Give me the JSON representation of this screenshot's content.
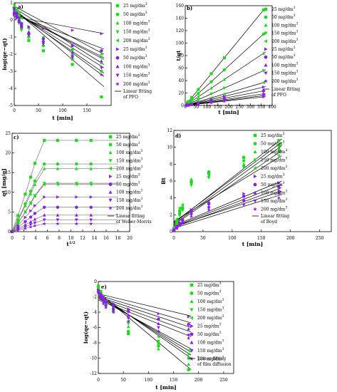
{
  "legend_entries": [
    "25 mg/dm",
    "50 mg/dm",
    "100 mg/dm",
    "150 mg/dm",
    "200 mg/dm",
    "25 mg/dm",
    "50 mg/dm",
    "100 mg/dm",
    "150 mg/dm",
    "200 mg/dm"
  ],
  "legend_superscript": "3",
  "colors": {
    "green": "#22d622",
    "purple": "#8a20e8",
    "line": "#000000"
  },
  "chart_data": [
    {
      "panel_label": "a)",
      "type": "scatter",
      "xlabel": "t [min]",
      "ylabel": "log(qe−qt)",
      "xlim": [
        0,
        200
      ],
      "ylim": [
        -5,
        1
      ],
      "xticks": [
        0,
        50,
        100,
        150
      ],
      "yticks": [
        1,
        0,
        -1,
        -2,
        -3,
        -4,
        -5
      ],
      "fit_label": [
        "Linear fitting",
        "of PFO"
      ],
      "x": [
        0,
        5,
        10,
        15,
        30,
        60,
        120,
        180
      ],
      "series": [
        {
          "values": [
            0.7,
            0.5,
            0.2,
            -0.2,
            -1.2,
            -1.8,
            -2.6,
            -4.5
          ]
        },
        {
          "values": [
            0.6,
            0.3,
            0.0,
            -0.5,
            -1.0,
            -1.5,
            -2.3,
            -3.0
          ]
        },
        {
          "values": [
            0.8,
            0.6,
            0.3,
            -0.2,
            -0.7,
            -1.2,
            -2.0,
            -2.5
          ]
        },
        {
          "values": [
            0.5,
            0.2,
            -0.2,
            -0.6,
            -0.9,
            -1.3,
            -1.8,
            -2.2
          ]
        },
        {
          "values": [
            0.9,
            0.6,
            0.4,
            0.1,
            -0.5,
            -1.0,
            -1.7,
            -2.0
          ]
        },
        {
          "values": [
            0.3,
            0.1,
            -0.1,
            -0.3,
            -0.4,
            -0.5,
            -0.6,
            -0.8
          ]
        },
        {
          "values": [
            0.4,
            0.2,
            -0.1,
            -0.4,
            -0.8,
            -1.1,
            -1.5,
            -1.8
          ]
        },
        {
          "values": [
            0.5,
            0.3,
            0.0,
            -0.3,
            -0.7,
            -1.2,
            -1.9,
            -2.4
          ]
        },
        {
          "values": [
            0.6,
            0.4,
            0.1,
            -0.3,
            -0.9,
            -1.4,
            -2.2,
            -2.8
          ]
        },
        {
          "values": [
            0.7,
            0.4,
            0.1,
            -0.2,
            -0.8,
            -1.3,
            -2.1,
            -3.2
          ]
        }
      ],
      "fit_lines": [
        [
          [
            0,
            0.6
          ],
          [
            185,
            -3.9
          ]
        ],
        [
          [
            0,
            0.5
          ],
          [
            185,
            -3.1
          ]
        ],
        [
          [
            0,
            0.7
          ],
          [
            185,
            -2.6
          ]
        ],
        [
          [
            0,
            0.4
          ],
          [
            185,
            -2.2
          ]
        ],
        [
          [
            0,
            0.8
          ],
          [
            185,
            -2.0
          ]
        ],
        [
          [
            0,
            0.2
          ],
          [
            185,
            -0.8
          ]
        ],
        [
          [
            0,
            0.3
          ],
          [
            185,
            -1.7
          ]
        ],
        [
          [
            0,
            0.4
          ],
          [
            185,
            -2.3
          ]
        ],
        [
          [
            0,
            0.5
          ],
          [
            185,
            -2.8
          ]
        ],
        [
          [
            0,
            0.6
          ],
          [
            185,
            -3.3
          ]
        ]
      ]
    },
    {
      "panel_label": "b)",
      "type": "scatter",
      "xlabel": "t [min]",
      "ylabel": "t/qt",
      "xlim": [
        0,
        400
      ],
      "ylim": [
        0,
        160
      ],
      "xticks": [
        0,
        50,
        100,
        150,
        200,
        250,
        300,
        350,
        400
      ],
      "yticks": [
        0,
        20,
        40,
        60,
        80,
        100,
        120,
        140,
        160
      ],
      "fit_label": [
        "Linear fitting",
        "of PFO"
      ],
      "x": [
        5,
        10,
        15,
        30,
        60,
        120,
        180,
        360
      ],
      "series": [
        {
          "slope": 0.425
        },
        {
          "slope": 0.318
        },
        {
          "slope": 0.232
        },
        {
          "slope": 0.155
        },
        {
          "slope": 0.102
        },
        {
          "slope": 0.082
        },
        {
          "slope": 0.065
        },
        {
          "slope": 0.052
        },
        {
          "slope": 0.044
        },
        {
          "slope": 0.038
        }
      ]
    },
    {
      "panel_label": "c)",
      "type": "scatter",
      "xlabel": "t",
      "xlabel_superscript": "1/2",
      "ylabel": "qt [mg/g]",
      "xlim": [
        0,
        20
      ],
      "ylim": [
        0,
        25
      ],
      "xticks": [
        0,
        2,
        4,
        6,
        8,
        10,
        12,
        14,
        16,
        18,
        20
      ],
      "yticks": [
        0,
        5,
        10,
        15,
        20,
        25
      ],
      "fit_label": [
        "Linear fitting",
        "of Weber-Morris"
      ],
      "x": [
        0,
        1,
        2.24,
        3.16,
        3.87,
        5.48,
        7.75,
        10.95,
        13.42
      ],
      "plateaus": [
        23.2,
        17.2,
        16.0,
        12.3,
        12.0,
        8.8,
        6.2,
        4.2,
        3.0,
        2.0
      ]
    },
    {
      "panel_label": "d)",
      "type": "scatter",
      "xlabel": "t [min]",
      "ylabel": "Bt",
      "xlim": [
        0,
        270
      ],
      "ylim": [
        0,
        12
      ],
      "xticks": [
        0,
        50,
        100,
        150,
        200,
        250
      ],
      "yticks": [
        0,
        2,
        4,
        6,
        8,
        10,
        12
      ],
      "fit_label": [
        "Linear fitting",
        "of Boyd"
      ],
      "x": [
        0,
        5,
        10,
        15,
        30,
        60,
        120,
        180
      ],
      "series": [
        {
          "values": [
            0.3,
            1.2,
            2.4,
            2.8,
            6.0,
            6.9,
            8.8,
            10.8
          ]
        },
        {
          "values": [
            0.2,
            1.0,
            2.1,
            2.7,
            5.8,
            7.1,
            8.4,
            10.2
          ]
        },
        {
          "values": [
            0.4,
            1.4,
            2.6,
            3.0,
            6.2,
            6.6,
            8.0,
            9.6
          ]
        },
        {
          "values": [
            0.3,
            0.9,
            1.9,
            2.5,
            5.5,
            6.4,
            7.6,
            9.0
          ]
        },
        {
          "values": [
            0.5,
            1.5,
            2.8,
            3.2,
            5.9,
            6.8,
            7.8,
            9.8
          ]
        },
        {
          "values": [
            0.1,
            0.5,
            0.9,
            1.3,
            2.6,
            3.5,
            4.5,
            5.8
          ]
        },
        {
          "values": [
            0.2,
            0.6,
            1.0,
            1.4,
            2.4,
            3.3,
            4.2,
            5.3
          ]
        },
        {
          "values": [
            0.1,
            0.4,
            0.8,
            1.2,
            2.2,
            3.0,
            3.8,
            4.9
          ]
        },
        {
          "values": [
            0.2,
            0.5,
            0.9,
            1.3,
            2.0,
            2.8,
            3.6,
            4.5
          ]
        },
        {
          "values": [
            0.1,
            0.4,
            0.7,
            1.0,
            1.8,
            2.6,
            3.2,
            4.0
          ]
        }
      ],
      "fit_lines": [
        [
          [
            0,
            1.0
          ],
          [
            185,
            11.0
          ]
        ],
        [
          [
            0,
            0.9
          ],
          [
            185,
            10.2
          ]
        ],
        [
          [
            0,
            1.1
          ],
          [
            185,
            10.6
          ]
        ],
        [
          [
            0,
            0.8
          ],
          [
            185,
            9.6
          ]
        ],
        [
          [
            0,
            1.2
          ],
          [
            185,
            9.0
          ]
        ],
        [
          [
            0,
            0.7
          ],
          [
            185,
            6.0
          ]
        ],
        [
          [
            0,
            0.6
          ],
          [
            185,
            5.6
          ]
        ],
        [
          [
            0,
            0.5
          ],
          [
            185,
            5.2
          ]
        ],
        [
          [
            0,
            0.6
          ],
          [
            185,
            4.8
          ]
        ],
        [
          [
            0,
            0.4
          ],
          [
            185,
            4.4
          ]
        ]
      ]
    },
    {
      "panel_label": "e)",
      "type": "scatter",
      "xlabel": "t [min]",
      "ylabel": "log(qe−qt)",
      "xlim": [
        0,
        270
      ],
      "ylim": [
        -12,
        0
      ],
      "xticks": [
        0,
        50,
        100,
        150,
        200,
        250
      ],
      "yticks": [
        0,
        -2,
        -4,
        -6,
        -8,
        -10,
        -12
      ],
      "fit_label": [
        "Linear fitting",
        "of film diffusion"
      ],
      "x": [
        0,
        5,
        10,
        15,
        30,
        60,
        120,
        180
      ],
      "series": [
        {
          "values": [
            -0.6,
            -1.3,
            -2.0,
            -2.5,
            -3.5,
            -6.8,
            -8.4,
            -11.5
          ]
        },
        {
          "values": [
            -0.8,
            -1.5,
            -2.2,
            -2.8,
            -3.9,
            -6.5,
            -8.0,
            -10.0
          ]
        },
        {
          "values": [
            -0.9,
            -1.6,
            -2.4,
            -2.9,
            -3.3,
            -5.9,
            -8.8,
            -10.8
          ]
        },
        {
          "values": [
            -1.0,
            -1.7,
            -2.5,
            -3.0,
            -3.8,
            -5.5,
            -7.8,
            -9.5
          ]
        },
        {
          "values": [
            -1.2,
            -1.9,
            -2.6,
            -3.2,
            -4.0,
            -5.2,
            -7.2,
            -9.0
          ]
        },
        {
          "values": [
            -1.1,
            -1.6,
            -2.0,
            -2.4,
            -2.9,
            -3.6,
            -4.2,
            -4.6
          ]
        },
        {
          "values": [
            -1.2,
            -1.8,
            -2.3,
            -2.7,
            -3.2,
            -3.9,
            -4.9,
            -5.6
          ]
        },
        {
          "values": [
            -1.3,
            -1.9,
            -2.5,
            -3.0,
            -3.5,
            -4.4,
            -5.5,
            -6.2
          ]
        },
        {
          "values": [
            -1.4,
            -2.0,
            -2.7,
            -3.2,
            -3.8,
            -4.8,
            -6.0,
            -7.0
          ]
        },
        {
          "values": [
            -1.5,
            -2.2,
            -2.9,
            -3.4,
            -4.0,
            -5.2,
            -6.5,
            -7.4
          ]
        }
      ],
      "fit_lines": [
        [
          [
            0,
            -1.4
          ],
          [
            185,
            -11.5
          ]
        ],
        [
          [
            0,
            -1.6
          ],
          [
            185,
            -10.0
          ]
        ],
        [
          [
            0,
            -1.8
          ],
          [
            185,
            -9.6
          ]
        ],
        [
          [
            0,
            -2.0
          ],
          [
            185,
            -9.2
          ]
        ],
        [
          [
            0,
            -2.2
          ],
          [
            185,
            -8.8
          ]
        ],
        [
          [
            0,
            -1.6
          ],
          [
            185,
            -4.5
          ]
        ],
        [
          [
            0,
            -1.8
          ],
          [
            185,
            -5.4
          ]
        ],
        [
          [
            0,
            -2.0
          ],
          [
            185,
            -6.0
          ]
        ],
        [
          [
            0,
            -2.2
          ],
          [
            185,
            -6.6
          ]
        ],
        [
          [
            0,
            -2.4
          ],
          [
            185,
            -7.2
          ]
        ]
      ]
    }
  ]
}
